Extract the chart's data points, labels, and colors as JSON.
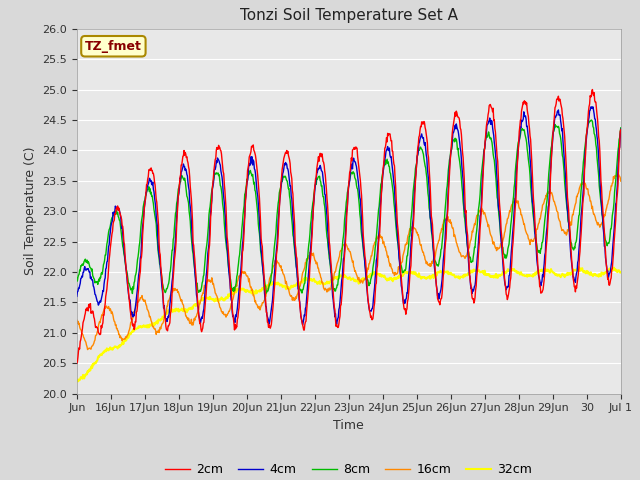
{
  "title": "Tonzi Soil Temperature Set A",
  "xlabel": "Time",
  "ylabel": "Soil Temperature (C)",
  "ylim": [
    20.0,
    26.0
  ],
  "yticks": [
    20.0,
    20.5,
    21.0,
    21.5,
    22.0,
    22.5,
    23.0,
    23.5,
    24.0,
    24.5,
    25.0,
    25.5,
    26.0
  ],
  "colors": {
    "2cm": "#ff0000",
    "4cm": "#0000cc",
    "8cm": "#00bb00",
    "16cm": "#ff8800",
    "32cm": "#ffff00"
  },
  "legend_labels": [
    "2cm",
    "4cm",
    "8cm",
    "16cm",
    "32cm"
  ],
  "annotation": "TZ_fmet",
  "annotation_color": "#880000",
  "annotation_bg": "#ffffcc",
  "annotation_edge": "#aa8800",
  "fig_bg": "#d9d9d9",
  "plot_bg": "#e8e8e8",
  "grid_color": "#ffffff",
  "n_points": 960,
  "x_start": 15.0,
  "x_end": 31.0,
  "x_tick_positions": [
    15,
    16,
    17,
    18,
    19,
    20,
    21,
    22,
    23,
    24,
    25,
    26,
    27,
    28,
    29,
    30,
    31
  ],
  "x_tick_labels": [
    "Jun",
    "16Jun",
    "17Jun",
    "18Jun",
    "19Jun",
    "20Jun",
    "21Jun",
    "22Jun",
    "23Jun",
    "24Jun",
    "25Jun",
    "26Jun",
    "27Jun",
    "28Jun",
    "29Jun",
    "30",
    "Jul 1"
  ]
}
